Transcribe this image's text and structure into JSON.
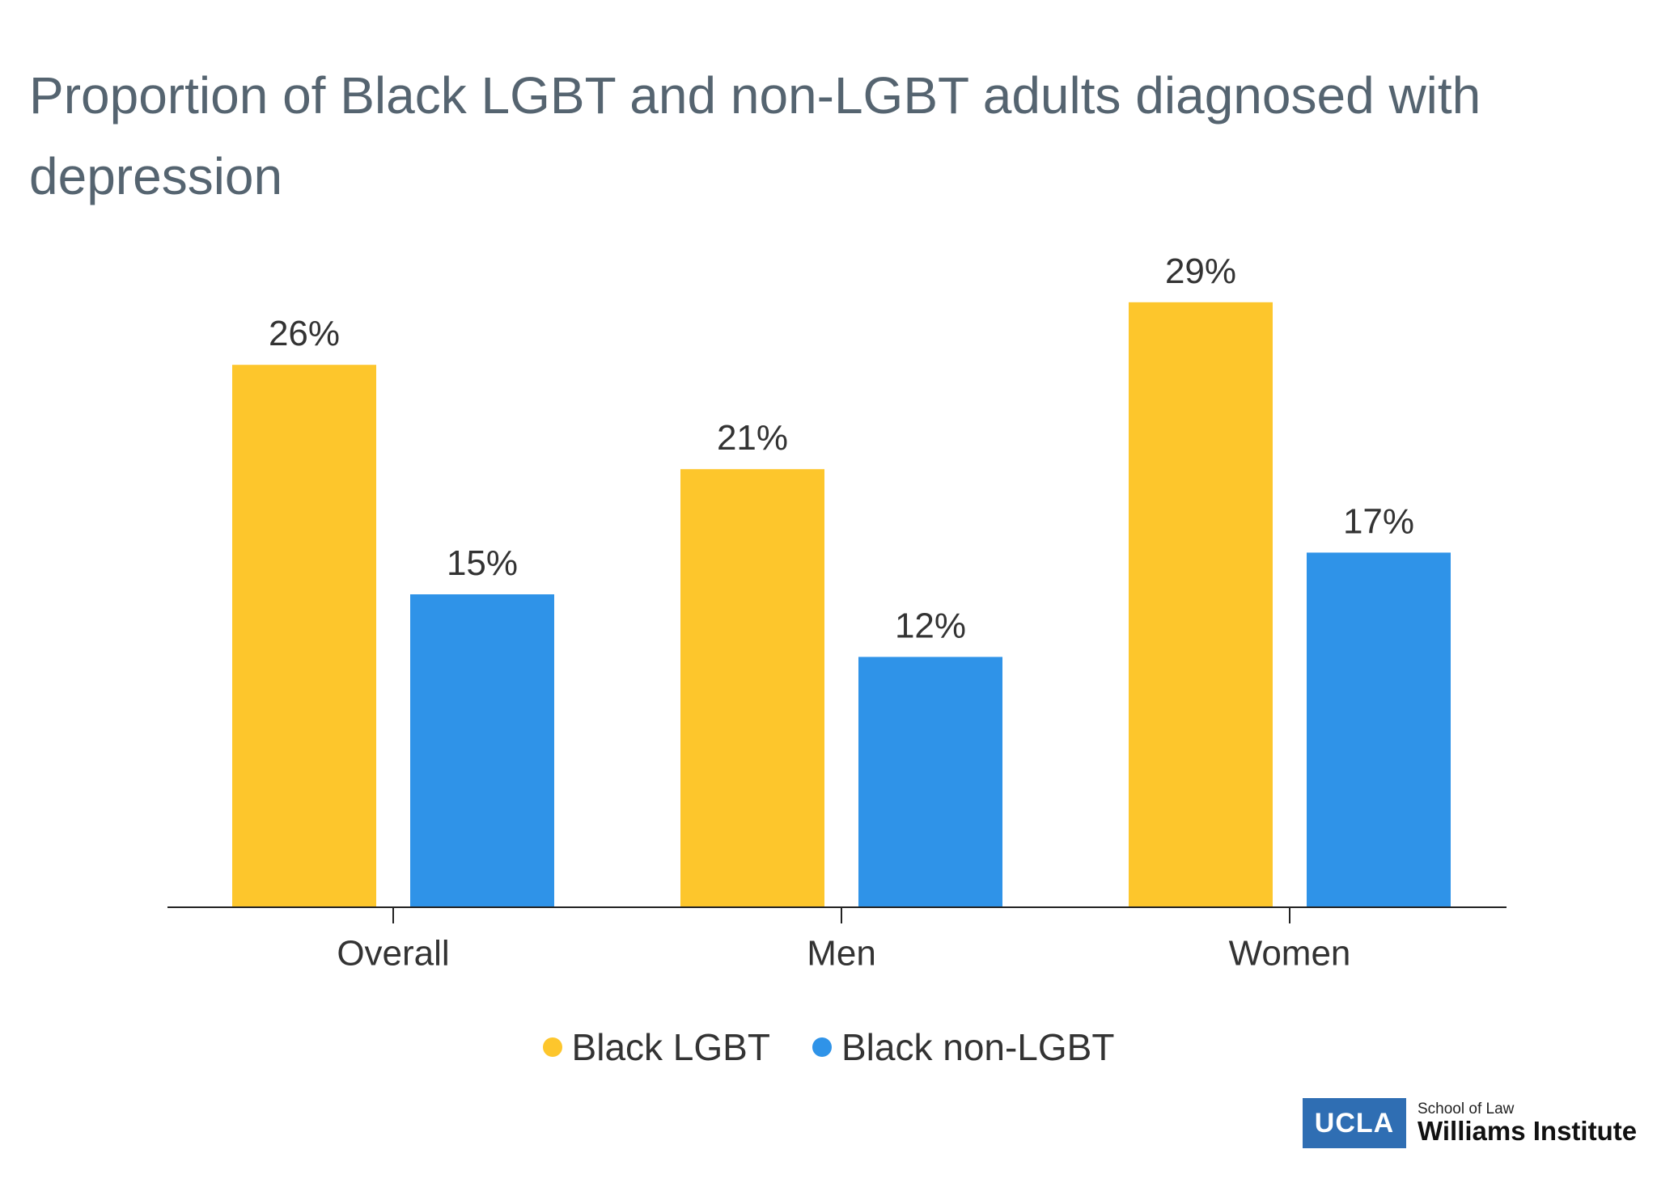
{
  "chart_data": {
    "type": "bar",
    "title": "Proportion of Black LGBT and non-LGBT adults diagnosed with depression",
    "categories": [
      "Overall",
      "Men",
      "Women"
    ],
    "series": [
      {
        "name": "Black LGBT",
        "values": [
          26,
          21,
          29
        ],
        "labels": [
          "26%",
          "21%",
          "29%"
        ],
        "color": "#fdc62c"
      },
      {
        "name": "Black non-LGBT",
        "values": [
          15,
          12,
          17
        ],
        "labels": [
          "15%",
          "12%",
          "17%"
        ],
        "color": "#2f93e8"
      }
    ],
    "ylim": [
      0,
      30
    ],
    "unit": "%",
    "grid": false,
    "legend_position": "bottom-center",
    "xlabel": "",
    "ylabel": ""
  },
  "logo": {
    "short": "UCLA",
    "sub": "School of Law",
    "main": "Williams Institute"
  }
}
